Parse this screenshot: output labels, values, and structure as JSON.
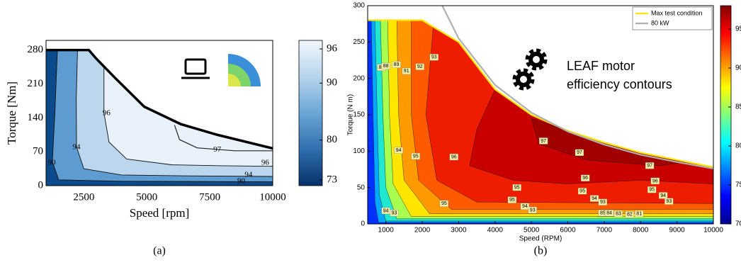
{
  "chart_data": [
    {
      "type": "contour",
      "label": "(a)",
      "x_label": "Speed [rpm]",
      "y_label": "Torque [Nm]",
      "xlim": [
        1000,
        10000
      ],
      "ylim": [
        0,
        300
      ],
      "xticks": [
        2500,
        5000,
        7500,
        10000
      ],
      "yticks": [
        0,
        70,
        140,
        210,
        280
      ],
      "colorbar": {
        "clim": [
          72,
          97.5
        ],
        "ticks": [
          73,
          80,
          90,
          96
        ],
        "colors": [
          "#08306b",
          "#2f6fae",
          "#6aa6d6",
          "#b7d4ec",
          "#f2f7fd"
        ]
      },
      "regions": [
        {
          "color": "#e9f1fa",
          "x": [
            1000,
            10000,
            10000,
            7800,
            6350,
            4900,
            3750,
            3000,
            2700,
            1000
          ],
          "y": [
            0,
            0,
            77,
            105,
            127,
            163,
            222,
            262,
            280,
            280
          ]
        },
        {
          "color": "#bcd6ed",
          "x": [
            3300,
            3300,
            3500,
            4200,
            6000,
            8000,
            10000,
            10000,
            1000,
            1000,
            2700,
            3000
          ],
          "y": [
            245,
            150,
            90,
            55,
            43,
            41,
            40,
            0,
            0,
            280,
            280,
            262
          ]
        },
        {
          "color": "#5d9bd0",
          "x": [
            2250,
            2200,
            2210,
            2500,
            4000,
            7000,
            10000,
            10000,
            1000,
            1000
          ],
          "y": [
            280,
            180,
            80,
            35,
            22,
            20,
            19,
            0,
            0,
            280
          ]
        },
        {
          "color": "#0b4a8b",
          "x": [
            1450,
            1350,
            1250,
            1500,
            4000,
            10000,
            10000,
            1000,
            1000
          ],
          "y": [
            280,
            150,
            50,
            12,
            9,
            8,
            0,
            0,
            280
          ]
        }
      ],
      "lines": [
        {
          "color": "#222222",
          "x": [
            6100,
            6300,
            7000,
            8500,
            10000
          ],
          "y": [
            125,
            95,
            78,
            72,
            72
          ]
        }
      ],
      "series": [
        {
          "color": "#000000",
          "x": [
            1000,
            2700,
            3000,
            3750,
            4900,
            6350,
            7800,
            10000
          ],
          "y": [
            280,
            280,
            262,
            222,
            163,
            127,
            105,
            77
          ]
        }
      ],
      "contour_labels": [
        {
          "value": 90,
          "x": 1230,
          "y": 47
        },
        {
          "value": 94,
          "x": 2210,
          "y": 79
        },
        {
          "value": 96,
          "x": 3400,
          "y": 149
        },
        {
          "value": 97,
          "x": 7800,
          "y": 74
        },
        {
          "value": 96,
          "x": 9700,
          "y": 47
        },
        {
          "value": 94,
          "x": 9040,
          "y": 22
        },
        {
          "value": 90,
          "x": 8750,
          "y": 9
        }
      ]
    },
    {
      "type": "contour",
      "label": "(b)",
      "x_label": "Speed (RPM)",
      "y_label": "Torque (N m)",
      "xlim": [
        500,
        10000
      ],
      "ylim": [
        0,
        300
      ],
      "xticks": [
        1000,
        2000,
        3000,
        4000,
        5000,
        6000,
        7000,
        8000,
        9000,
        10000
      ],
      "yticks": [
        0,
        50,
        100,
        150,
        200,
        250,
        300
      ],
      "annotation": [
        "LEAF motor",
        "efficiency contours"
      ],
      "legend": "upper right",
      "colorbar": {
        "clim": [
          70,
          98
        ],
        "ticks": [
          70,
          75,
          80,
          85,
          90,
          95
        ],
        "colors": [
          "#00008f",
          "#0000ff",
          "#0080ff",
          "#00ffff",
          "#80ff80",
          "#ffff00",
          "#ff8000",
          "#ff0000",
          "#800000"
        ]
      },
      "regions": [
        {
          "color": "#0030ff",
          "x": [
            500,
            10000,
            10000,
            9000,
            8000,
            7000,
            6000,
            5000,
            4000,
            3000,
            2000,
            500
          ],
          "y": [
            0,
            0,
            78,
            88,
            98,
            112,
            128,
            150,
            185,
            250,
            280,
            280
          ]
        },
        {
          "color": "#00a8ff",
          "x": [
            600,
            650,
            700,
            800,
            10000,
            10000,
            9000,
            8000,
            7000,
            6000,
            5000,
            4000,
            3000,
            2000
          ],
          "y": [
            280,
            150,
            30,
            2,
            2,
            78,
            88,
            98,
            112,
            128,
            150,
            185,
            250,
            280
          ]
        },
        {
          "color": "#20e8d0",
          "x": [
            700,
            760,
            820,
            1000,
            10000,
            10000,
            9000,
            8000,
            7000,
            6000,
            5000,
            4000,
            3000,
            2000
          ],
          "y": [
            280,
            150,
            40,
            4,
            4,
            78,
            88,
            98,
            112,
            128,
            150,
            185,
            250,
            280
          ]
        },
        {
          "color": "#a8ff50",
          "x": [
            850,
            920,
            1000,
            1300,
            10000,
            10000,
            9000,
            8000,
            7000,
            6000,
            5000,
            4000,
            3000,
            2000
          ],
          "y": [
            280,
            150,
            50,
            7,
            7,
            78,
            88,
            98,
            112,
            128,
            150,
            185,
            250,
            280
          ]
        },
        {
          "color": "#ffe600",
          "x": [
            1050,
            1100,
            1200,
            1700,
            10000,
            10000,
            9000,
            8000,
            7000,
            6000,
            5000,
            4000,
            3000,
            2000
          ],
          "y": [
            280,
            150,
            55,
            10,
            10,
            78,
            88,
            98,
            112,
            128,
            150,
            185,
            250,
            280
          ]
        },
        {
          "color": "#ff9a00",
          "x": [
            1300,
            1350,
            1500,
            2200,
            10000,
            10000,
            9000,
            8000,
            7000,
            6000,
            5000,
            4000,
            3000,
            2000
          ],
          "y": [
            280,
            150,
            60,
            14,
            14,
            78,
            88,
            98,
            112,
            128,
            150,
            185,
            250,
            280
          ]
        },
        {
          "color": "#ff5a00",
          "x": [
            1700,
            1700,
            1900,
            2800,
            10000,
            10000,
            9000,
            8000,
            7000,
            6000,
            5000,
            4000,
            3000,
            2000
          ],
          "y": [
            280,
            150,
            60,
            20,
            20,
            78,
            88,
            98,
            112,
            128,
            150,
            185,
            250,
            280
          ]
        },
        {
          "color": "#ee1c00",
          "x": [
            2300,
            2100,
            2400,
            3500,
            10000,
            10000,
            9000,
            8000,
            7000,
            6000,
            5000,
            4000,
            3000
          ],
          "y": [
            271,
            150,
            60,
            30,
            28,
            78,
            88,
            98,
            112,
            128,
            150,
            185,
            250
          ]
        },
        {
          "color": "#c80000",
          "x": [
            3500,
            4000,
            5000,
            6000,
            7000,
            8000,
            9000,
            10000,
            10000,
            8000,
            6000,
            4500,
            3300
          ],
          "y": [
            130,
            185,
            150,
            128,
            112,
            98,
            88,
            78,
            55,
            60,
            55,
            60,
            80
          ]
        },
        {
          "color": "#a00000",
          "x": [
            5000,
            6000,
            7000,
            8000,
            9300,
            8500,
            6500,
            5200
          ],
          "y": [
            145,
            128,
            112,
            98,
            85,
            80,
            88,
            110
          ]
        }
      ],
      "series": [
        {
          "name": "Max test condition",
          "color": "#ffe600",
          "x": [
            500,
            2000,
            3000,
            4000,
            5000,
            6000,
            7000,
            8000,
            9000,
            10000
          ],
          "y": [
            280,
            280,
            250,
            185,
            150,
            128,
            112,
            98,
            88,
            78
          ]
        },
        {
          "name": "80 kW",
          "color": "#b0b0b0",
          "x": [
            2550,
            3000,
            4000,
            5000,
            6000,
            7000,
            8000,
            9000,
            10000
          ],
          "y": [
            300,
            255,
            191,
            153,
            127,
            109,
            95,
            85,
            76
          ]
        }
      ],
      "contour_labels": [
        {
          "value": 86,
          "x": 880,
          "y": 215
        },
        {
          "value": 88,
          "x": 1000,
          "y": 217
        },
        {
          "value": 89,
          "x": 1290,
          "y": 219
        },
        {
          "value": 91,
          "x": 1565,
          "y": 210
        },
        {
          "value": 92,
          "x": 1935,
          "y": 216
        },
        {
          "value": 93,
          "x": 2325,
          "y": 229
        },
        {
          "value": 94,
          "x": 1350,
          "y": 101
        },
        {
          "value": 95,
          "x": 1820,
          "y": 93
        },
        {
          "value": 96,
          "x": 2870,
          "y": 92
        },
        {
          "value": 97,
          "x": 5330,
          "y": 114
        },
        {
          "value": 97,
          "x": 6320,
          "y": 98
        },
        {
          "value": 97,
          "x": 8250,
          "y": 80
        },
        {
          "value": 96,
          "x": 6480,
          "y": 63
        },
        {
          "value": 96,
          "x": 8400,
          "y": 59
        },
        {
          "value": 95,
          "x": 4600,
          "y": 50
        },
        {
          "value": 95,
          "x": 6400,
          "y": 45
        },
        {
          "value": 95,
          "x": 8310,
          "y": 47
        },
        {
          "value": 95,
          "x": 2600,
          "y": 28
        },
        {
          "value": 95,
          "x": 4470,
          "y": 33
        },
        {
          "value": 94,
          "x": 6730,
          "y": 35
        },
        {
          "value": 93,
          "x": 6960,
          "y": 30
        },
        {
          "value": 94,
          "x": 8620,
          "y": 39
        },
        {
          "value": 93,
          "x": 8780,
          "y": 31
        },
        {
          "value": 94,
          "x": 4820,
          "y": 24
        },
        {
          "value": 93,
          "x": 5030,
          "y": 19
        },
        {
          "value": 94,
          "x": 1000,
          "y": 18
        },
        {
          "value": 93,
          "x": 1230,
          "y": 15
        },
        {
          "value": 85,
          "x": 6960,
          "y": 15
        },
        {
          "value": 84,
          "x": 7140,
          "y": 15
        },
        {
          "value": 83,
          "x": 7390,
          "y": 14
        },
        {
          "value": 82,
          "x": 7700,
          "y": 13
        },
        {
          "value": 81,
          "x": 7960,
          "y": 14
        }
      ]
    }
  ]
}
